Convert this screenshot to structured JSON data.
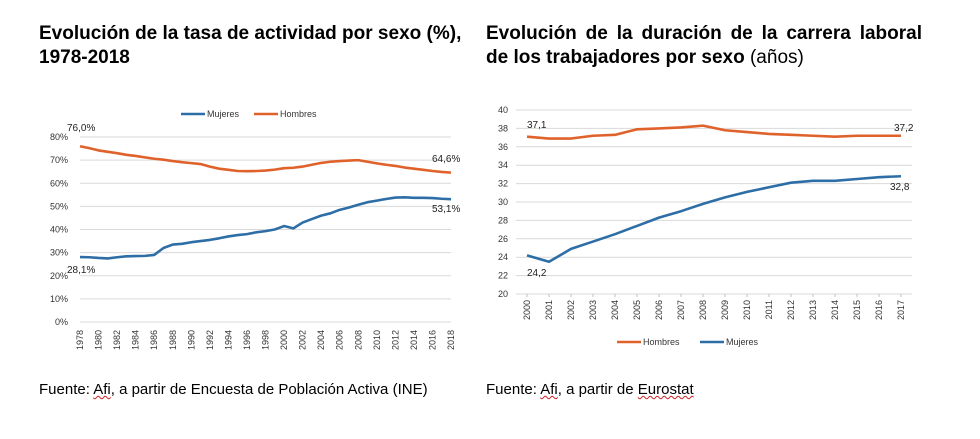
{
  "left": {
    "title": "Evolución de la tasa de actividad por sexo (%), 1978-2018",
    "source": "Fuente: Afi, a partir de Encuesta de Población Activa (INE)",
    "source_pre": "Fuente: ",
    "source_afi": "Afi",
    "source_post": ", a partir de Encuesta de Población Activa (INE)"
  },
  "right": {
    "title_bold": "Evolución de la duración de la carrera laboral de los trabajadores por sexo",
    "title_normal": " (años)",
    "source_pre": "Fuente: ",
    "source_afi": "Afi",
    "source_mid": ", a partir de ",
    "source_euro": "Eurostat"
  },
  "colors": {
    "hombres": "#E0622B",
    "mujeres": "#2E6EA6",
    "grid": "#d9d9d9"
  },
  "chart_data": [
    {
      "type": "line",
      "title": "Evolución de la tasa de actividad por sexo (%), 1978-2018",
      "x_tick_labels": [
        "1978",
        "1980",
        "1982",
        "1984",
        "1986",
        "1988",
        "1990",
        "1992",
        "1994",
        "1996",
        "1998",
        "2000",
        "2002",
        "2004",
        "2006",
        "2008",
        "2010",
        "2012",
        "2014",
        "2016",
        "2018"
      ],
      "y_tick_labels": [
        "0%",
        "10%",
        "20%",
        "30%",
        "40%",
        "50%",
        "60%",
        "70%",
        "80%"
      ],
      "ylim": [
        0,
        80
      ],
      "xlim": [
        1978,
        2018
      ],
      "legend": [
        "Mujeres",
        "Hombres"
      ],
      "legend_position": "top",
      "series": [
        {
          "name": "Mujeres",
          "x": [
            1978,
            1979,
            1980,
            1981,
            1982,
            1983,
            1984,
            1985,
            1986,
            1987,
            1988,
            1989,
            1990,
            1991,
            1992,
            1993,
            1994,
            1995,
            1996,
            1997,
            1998,
            1999,
            2000,
            2001,
            2002,
            2003,
            2004,
            2005,
            2006,
            2007,
            2008,
            2009,
            2010,
            2011,
            2012,
            2013,
            2014,
            2015,
            2016,
            2017,
            2018
          ],
          "values": [
            28.1,
            28.0,
            27.7,
            27.5,
            28.0,
            28.4,
            28.5,
            28.6,
            29.0,
            32.0,
            33.5,
            33.8,
            34.5,
            35.0,
            35.5,
            36.2,
            37.0,
            37.6,
            38.0,
            38.8,
            39.3,
            40.0,
            41.5,
            40.5,
            43.0,
            44.5,
            46.0,
            47.0,
            48.5,
            49.5,
            50.7,
            51.8,
            52.5,
            53.2,
            53.8,
            53.9,
            53.7,
            53.7,
            53.6,
            53.3,
            53.1
          ]
        },
        {
          "name": "Hombres",
          "x": [
            1978,
            1979,
            1980,
            1981,
            1982,
            1983,
            1984,
            1985,
            1986,
            1987,
            1988,
            1989,
            1990,
            1991,
            1992,
            1993,
            1994,
            1995,
            1996,
            1997,
            1998,
            1999,
            2000,
            2001,
            2002,
            2003,
            2004,
            2005,
            2006,
            2007,
            2008,
            2009,
            2010,
            2011,
            2012,
            2013,
            2014,
            2015,
            2016,
            2017,
            2018
          ],
          "values": [
            76.0,
            75.2,
            74.2,
            73.6,
            73.0,
            72.3,
            71.8,
            71.2,
            70.6,
            70.2,
            69.6,
            69.1,
            68.7,
            68.3,
            67.2,
            66.3,
            65.8,
            65.3,
            65.2,
            65.3,
            65.5,
            65.9,
            66.5,
            66.7,
            67.2,
            68.0,
            68.8,
            69.3,
            69.6,
            69.8,
            70.0,
            69.3,
            68.6,
            68.0,
            67.5,
            66.8,
            66.3,
            65.8,
            65.3,
            64.9,
            64.6
          ]
        }
      ],
      "annotations": [
        "76,0%",
        "28,1%",
        "64,6%",
        "53,1%"
      ]
    },
    {
      "type": "line",
      "title": "Evolución de la duración de la carrera laboral de los trabajadores por sexo (años)",
      "categories": [
        "2000",
        "2001",
        "2002",
        "2003",
        "2004",
        "2005",
        "2006",
        "2007",
        "2008",
        "2009",
        "2010",
        "2011",
        "2012",
        "2013",
        "2014",
        "2015",
        "2016",
        "2017"
      ],
      "y_tick_labels": [
        "20",
        "22",
        "24",
        "26",
        "28",
        "30",
        "32",
        "34",
        "36",
        "38",
        "40"
      ],
      "ylim": [
        20,
        40
      ],
      "legend": [
        "Hombres",
        "Mujeres"
      ],
      "legend_position": "bottom",
      "series": [
        {
          "name": "Hombres",
          "values": [
            37.1,
            36.9,
            36.9,
            37.2,
            37.3,
            37.9,
            38.0,
            38.1,
            38.3,
            37.8,
            37.6,
            37.4,
            37.3,
            37.2,
            37.1,
            37.2,
            37.2,
            37.2
          ]
        },
        {
          "name": "Mujeres",
          "values": [
            24.2,
            23.5,
            24.9,
            25.7,
            26.5,
            27.4,
            28.3,
            29.0,
            29.8,
            30.5,
            31.1,
            31.6,
            32.1,
            32.3,
            32.3,
            32.5,
            32.7,
            32.8
          ]
        }
      ],
      "annotations": [
        "37,1",
        "37,2",
        "24,2",
        "32,8"
      ]
    }
  ]
}
